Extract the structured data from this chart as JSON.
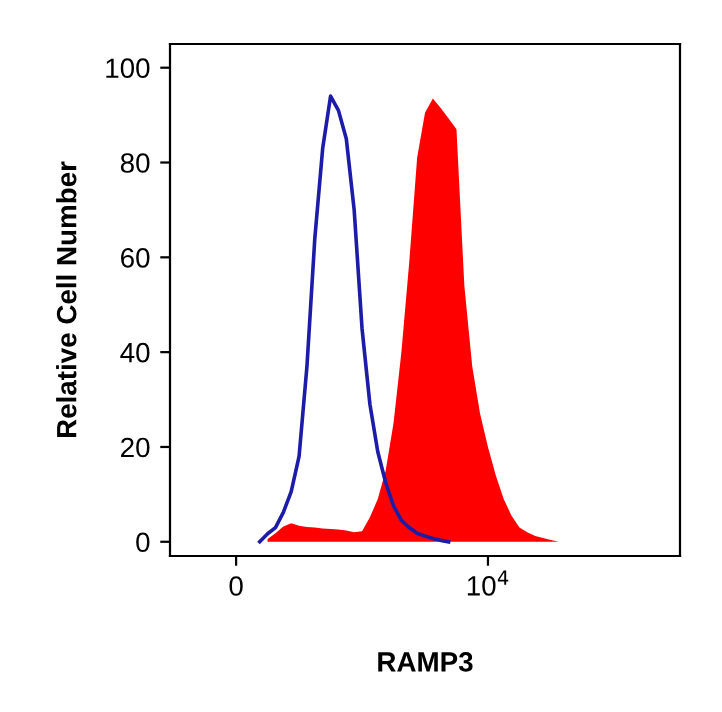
{
  "chart_data": {
    "type": "area",
    "xlabel": "RAMP3",
    "ylabel": "Relative Cell Number",
    "categories": [
      null,
      null,
      null,
      null,
      null,
      null,
      null,
      null,
      "0",
      null,
      null,
      null,
      null,
      null,
      null,
      null,
      null,
      null,
      null,
      null,
      null,
      null,
      null,
      null,
      null,
      null,
      null,
      null,
      null,
      null,
      null,
      null,
      null,
      null,
      null,
      null,
      null,
      null,
      null,
      null,
      "10$^{4}$",
      null,
      null,
      null,
      null,
      null,
      null,
      null,
      null,
      null,
      null,
      null,
      null,
      null,
      null,
      null,
      null,
      null,
      null,
      null,
      null,
      null,
      null,
      null,
      null
    ],
    "series": [
      {
        "color": "#ff0000",
        "values": [
          null,
          null,
          null,
          null,
          null,
          null,
          null,
          null,
          null,
          null,
          null,
          null,
          0.6,
          1.8,
          3.2,
          3.9,
          3.4,
          3.1,
          3.0,
          2.8,
          2.7,
          2.6,
          2.4,
          2.0,
          2.2,
          5.2,
          9,
          15,
          25,
          40,
          59,
          81,
          90.5,
          93.5,
          91.5,
          89.3,
          87,
          54,
          37,
          27,
          20,
          14,
          9,
          5.5,
          3,
          2,
          1.2,
          0.8,
          0.4,
          0,
          null,
          null,
          null,
          null,
          null,
          null,
          null,
          null,
          null,
          null,
          null,
          null,
          null,
          null,
          null
        ]
      },
      {
        "type": "line",
        "color": "#1c1ca8",
        "values": [
          null,
          null,
          null,
          null,
          null,
          null,
          null,
          null,
          null,
          null,
          null,
          0,
          1.7,
          3.0,
          6.2,
          10.6,
          18,
          37,
          64,
          83,
          94,
          91,
          85,
          70,
          45,
          29,
          19,
          12.5,
          7.6,
          4.5,
          3,
          1.8,
          1.2,
          0.7,
          0.3,
          0,
          null,
          null,
          null,
          null,
          null,
          null,
          null,
          null,
          null,
          null,
          null,
          null,
          null,
          null,
          null,
          null,
          null,
          null,
          null,
          null,
          null,
          null,
          null,
          null,
          null,
          null,
          null,
          null,
          null
        ]
      }
    ],
    "ylim": [
      -3,
      105
    ],
    "yticks": [
      0,
      20,
      40,
      60,
      80,
      100
    ],
    "grid": false,
    "legend": false
  }
}
